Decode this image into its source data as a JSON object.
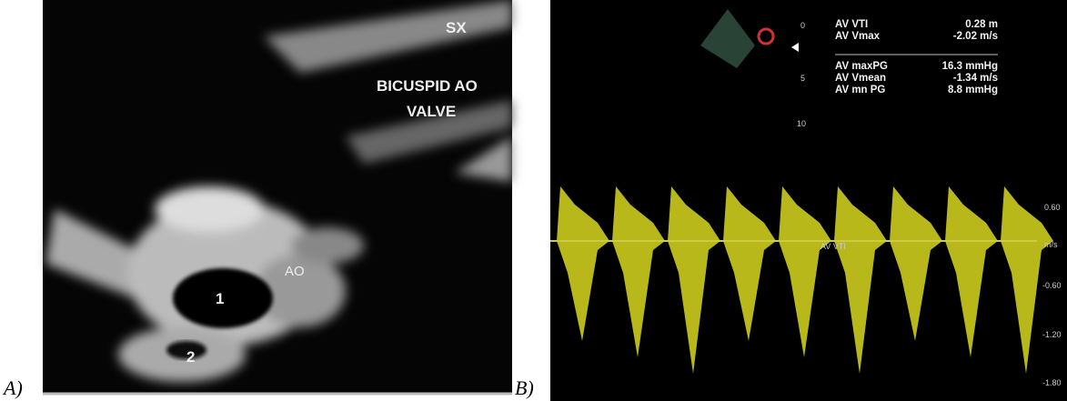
{
  "panel_a": {
    "label": "A)",
    "annotations": [
      "SX",
      "BICUSPID AO",
      "VALVE",
      "AO",
      "1",
      "2"
    ]
  },
  "panel_b": {
    "label": "B)",
    "depth_scale": [
      "0",
      "5",
      "10"
    ],
    "measurements": [
      {
        "label": "AV VTI",
        "value": "0.28 m"
      },
      {
        "label": "AV Vmax",
        "value": "-2.02 m/s"
      },
      {
        "label": "AV maxPG",
        "value": "16.3 mmHg"
      },
      {
        "label": "AV Vmean",
        "value": "-1.34 m/s"
      },
      {
        "label": "AV mn PG",
        "value": "8.8 mmHg"
      }
    ],
    "velocity_scale": [
      "0.60",
      "m/s",
      "-0.60",
      "-1.20",
      "-1.80"
    ],
    "trace_label": "AV VTI"
  }
}
